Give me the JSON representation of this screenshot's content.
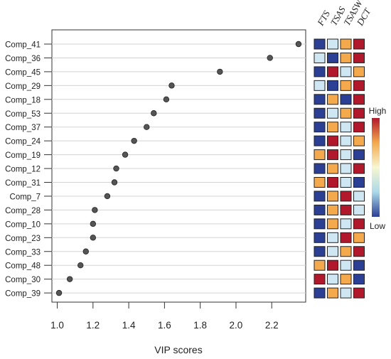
{
  "chart_data": {
    "type": "scatter",
    "subtype": "vip-dot-plot-with-heatmap",
    "xlabel": "VIP scores",
    "ylabel": "",
    "title": "",
    "xlim": [
      0.97,
      2.39
    ],
    "xticks": [
      "1.0",
      "1.2",
      "1.4",
      "1.6",
      "1.8",
      "2.0",
      "2.2"
    ],
    "xtick_values": [
      1.0,
      1.2,
      1.4,
      1.6,
      1.8,
      2.0,
      2.2
    ],
    "categories": [
      "Comp_41",
      "Comp_36",
      "Comp_45",
      "Comp_29",
      "Comp_18",
      "Comp_53",
      "Comp_37",
      "Comp_24",
      "Comp_19",
      "Comp_12",
      "Comp_31",
      "Comp_7",
      "Comp_28",
      "Comp_10",
      "Comp_23",
      "Comp_33",
      "Comp_48",
      "Comp_30",
      "Comp_39"
    ],
    "values": [
      2.35,
      2.19,
      1.91,
      1.64,
      1.61,
      1.54,
      1.5,
      1.43,
      1.38,
      1.33,
      1.32,
      1.28,
      1.21,
      1.2,
      1.2,
      1.16,
      1.13,
      1.07,
      1.01
    ],
    "heatmap": {
      "columns": [
        "FTS",
        "TSAS",
        "TSASW",
        "DCT"
      ],
      "levels": [
        "L",
        "l",
        "h",
        "H"
      ],
      "cells": [
        [
          "L",
          "l",
          "h",
          "H"
        ],
        [
          "l",
          "L",
          "h",
          "H"
        ],
        [
          "L",
          "H",
          "l",
          "h"
        ],
        [
          "l",
          "L",
          "h",
          "H"
        ],
        [
          "L",
          "h",
          "L",
          "H"
        ],
        [
          "L",
          "l",
          "h",
          "H"
        ],
        [
          "L",
          "h",
          "l",
          "H"
        ],
        [
          "L",
          "H",
          "l",
          "h"
        ],
        [
          "h",
          "H",
          "l",
          "L"
        ],
        [
          "L",
          "h",
          "l",
          "H"
        ],
        [
          "h",
          "H",
          "l",
          "L"
        ],
        [
          "L",
          "h",
          "H",
          "l"
        ],
        [
          "L",
          "h",
          "H",
          "l"
        ],
        [
          "L",
          "h",
          "l",
          "H"
        ],
        [
          "L",
          "l",
          "H",
          "h"
        ],
        [
          "L",
          "l",
          "h",
          "H"
        ],
        [
          "h",
          "H",
          "l",
          "L"
        ],
        [
          "H",
          "l",
          "h",
          "L"
        ],
        [
          "L",
          "h",
          "l",
          "H"
        ]
      ]
    },
    "colors": {
      "H": "#b2182b",
      "h": "#f4a94d",
      "l": "#cfe6f3",
      "L": "#2b3f95",
      "point": "#555555",
      "grid": "#d3d3d3"
    },
    "colorbar": {
      "high_label": "High",
      "low_label": "Low",
      "gradient": [
        "#b2182b",
        "#f4a94d",
        "#f7f7d0",
        "#abd9e9",
        "#2b3f95"
      ]
    }
  }
}
